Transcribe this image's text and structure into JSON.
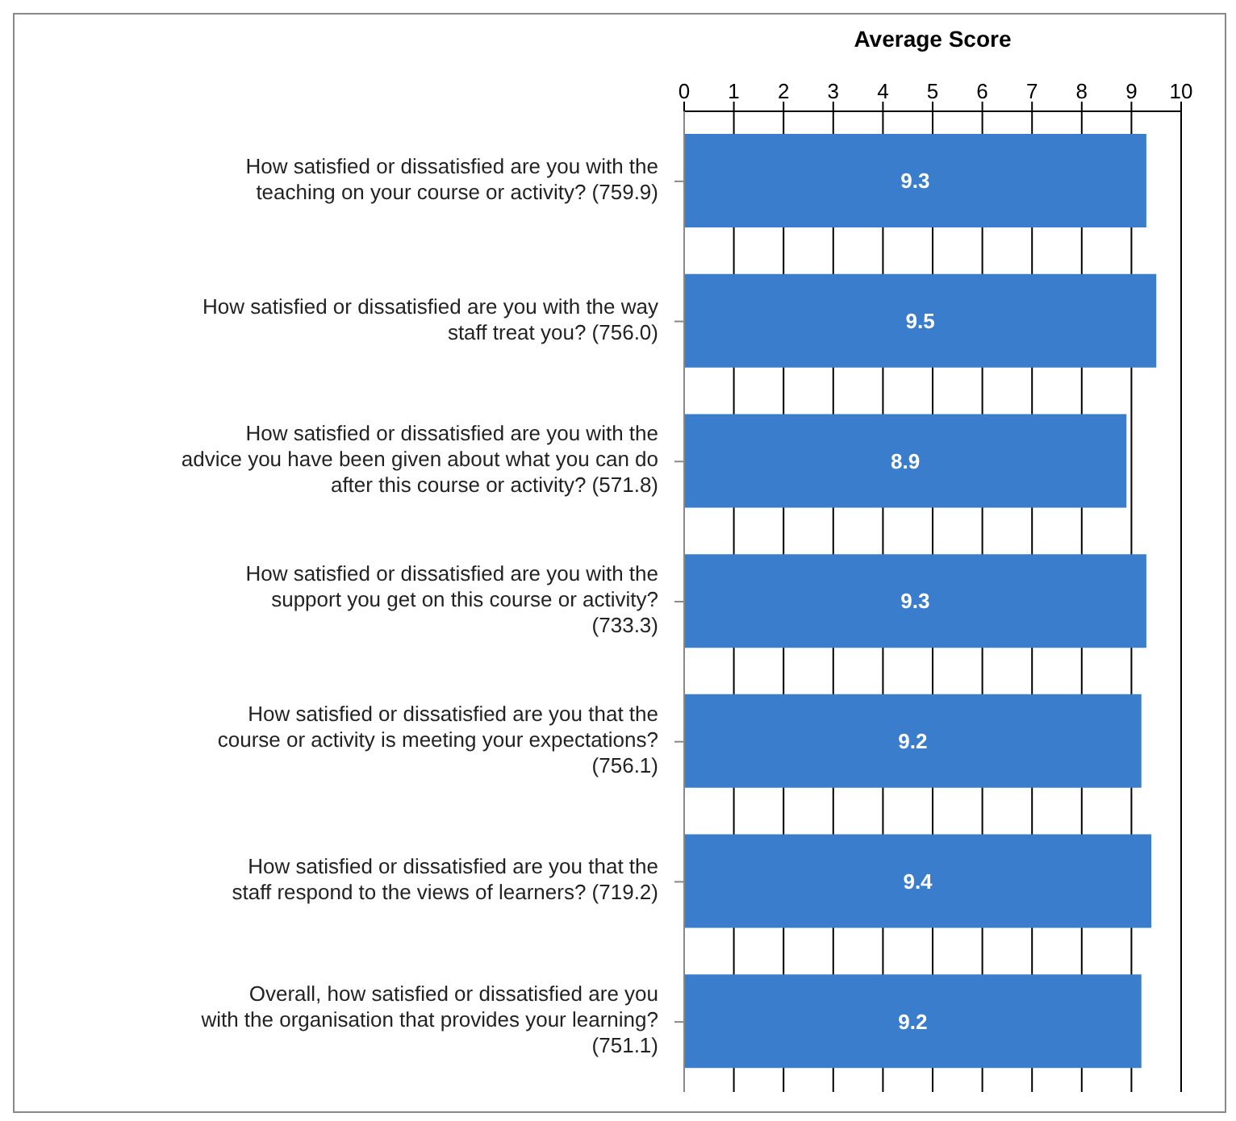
{
  "chart_data": {
    "type": "bar",
    "orientation": "horizontal",
    "xlabel": "Average Score",
    "categories": [
      "How satisfied or dissatisfied are you with the teaching on your course or activity? (759.9)",
      "How satisfied or dissatisfied are you with the way staff treat you? (756.0)",
      "How satisfied or dissatisfied are you with the advice you have been given about what you can do after this course or activity? (571.8)",
      "How satisfied or dissatisfied are you with the support you get on this course or activity? (733.3)",
      "How satisfied or dissatisfied are you that the course or activity is meeting your expectations? (756.1)",
      "How satisfied or dissatisfied are you that the staff respond to the views of learners? (719.2)",
      "Overall, how satisfied or dissatisfied are you with the organisation that provides your learning? (751.1)"
    ],
    "values": [
      9.3,
      9.5,
      8.9,
      9.3,
      9.2,
      9.4,
      9.2
    ],
    "color": "#3a7dcd",
    "xlim": [
      0,
      10
    ],
    "xticks": [
      0,
      1,
      2,
      3,
      4,
      5,
      6,
      7,
      8,
      9,
      10
    ],
    "grid": "x",
    "data_labels": true,
    "legend": false
  }
}
